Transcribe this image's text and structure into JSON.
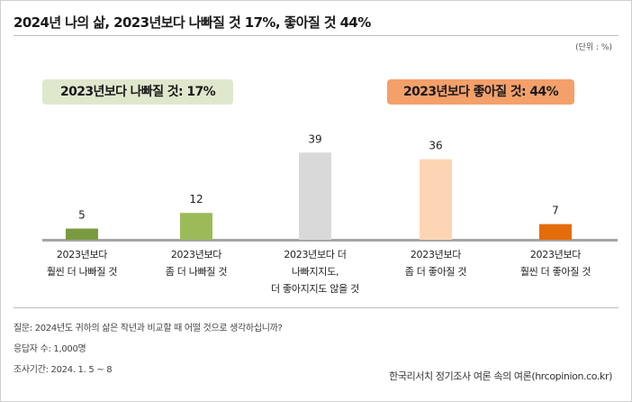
{
  "title": "2024년 나의 삶, 2023년보다 나빠질 것 17%, 좋아질 것 44%",
  "unit": "(단위 : %)",
  "summary": {
    "worse": "2023년보다 나빠질 것: 17%",
    "better": "2023년보다 좋아질 것: 44%"
  },
  "colors": {
    "worse_box": "#dfe8cd",
    "better_box": "#f4a06a",
    "baseline": "#a6a6a6"
  },
  "chart_data": {
    "type": "bar",
    "categories": [
      [
        "2023년보다",
        "훨씬 더 나빠질 것"
      ],
      [
        "2023년보다",
        "좀 더 나빠질 것"
      ],
      [
        "2023년보다 더",
        "나빠지지도,",
        "더 좋아지지도 않을 것"
      ],
      [
        "2023년보다",
        "좀 더 좋아질 것"
      ],
      [
        "2023년보다",
        "훨씬 더 좋아질 것"
      ]
    ],
    "values": [
      5,
      12,
      39,
      36,
      7
    ],
    "bar_colors": [
      "#7a9a42",
      "#9bbb59",
      "#d9d9d9",
      "#fcd5b4",
      "#e46c0a"
    ],
    "ylim": [
      0,
      45
    ],
    "xlabel": "",
    "ylabel": ""
  },
  "footer": {
    "question": "질문:  2024년도 귀하의 삶은 작년과 비교할 때 어떨 것으로 생각하십니까?",
    "respondents": "응답자 수: 1,000명",
    "period": "조사기간: 2024. 1. 5 ~ 8",
    "source": "한국리서치 정기조사 여론 속의 여론(hrcopinion.co.kr)"
  }
}
